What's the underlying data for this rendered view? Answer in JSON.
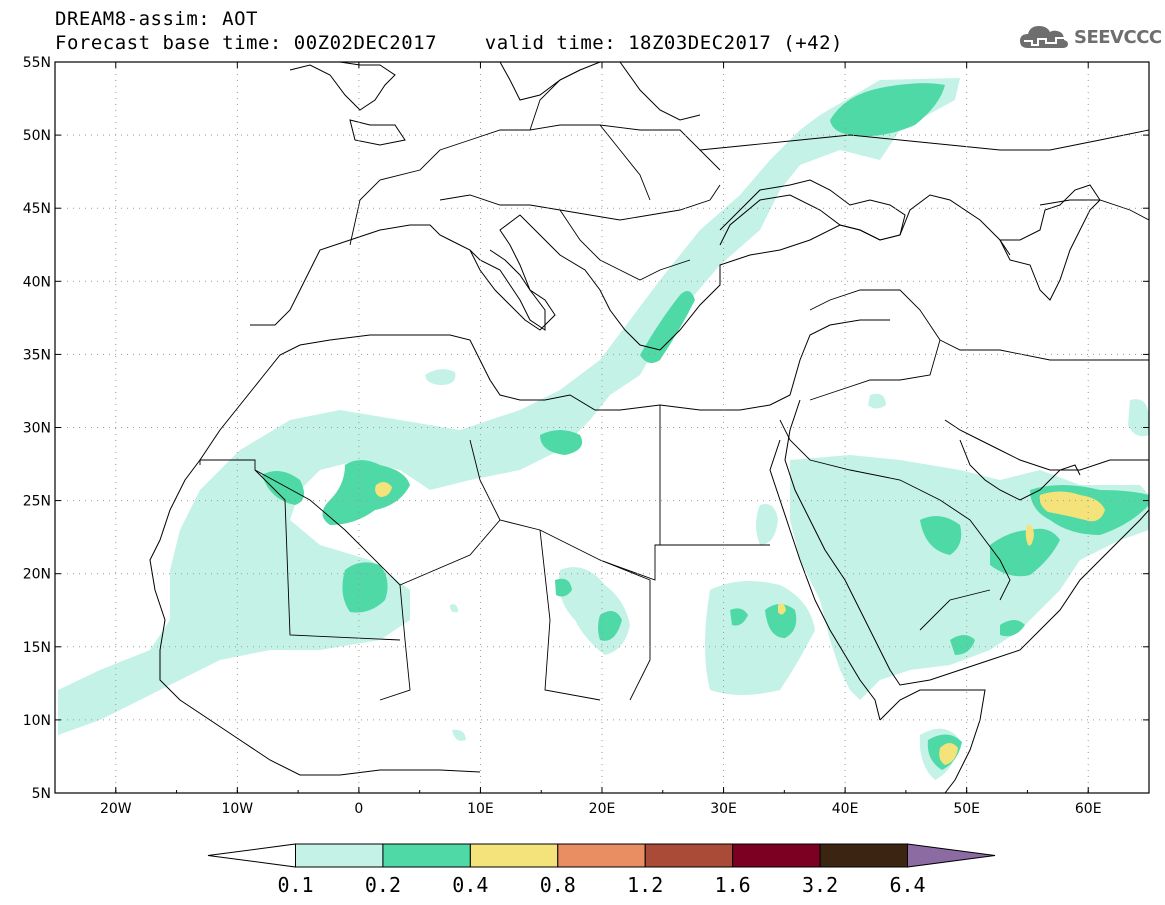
{
  "title_line1": "DREAM8-assim: AOT",
  "title_line2": "Forecast base time: 00Z02DEC2017    valid time: 18Z03DEC2017 (+42)",
  "logo_text": "SEEVCCC",
  "map": {
    "lon_range": [
      -25,
      65
    ],
    "lat_range": [
      5,
      55
    ],
    "lon_ticks": [
      {
        "value": -20,
        "label": "20W"
      },
      {
        "value": -10,
        "label": "10W"
      },
      {
        "value": 0,
        "label": "0"
      },
      {
        "value": 10,
        "label": "10E"
      },
      {
        "value": 20,
        "label": "20E"
      },
      {
        "value": 30,
        "label": "30E"
      },
      {
        "value": 40,
        "label": "40E"
      },
      {
        "value": 50,
        "label": "50E"
      },
      {
        "value": 60,
        "label": "60E"
      }
    ],
    "lat_ticks": [
      {
        "value": 55,
        "label": "55N"
      },
      {
        "value": 50,
        "label": "50N"
      },
      {
        "value": 45,
        "label": "45N"
      },
      {
        "value": 40,
        "label": "40N"
      },
      {
        "value": 35,
        "label": "35N"
      },
      {
        "value": 30,
        "label": "30N"
      },
      {
        "value": 25,
        "label": "25N"
      },
      {
        "value": 20,
        "label": "20N"
      },
      {
        "value": 15,
        "label": "15N"
      },
      {
        "value": 10,
        "label": "10N"
      },
      {
        "value": 5,
        "label": "5N"
      }
    ],
    "grid": true
  },
  "colorbar": {
    "levels": [
      "0.1",
      "0.2",
      "0.4",
      "0.8",
      "1.2",
      "1.6",
      "3.2",
      "6.4"
    ],
    "colors": [
      "#ffffff",
      "#c4f2e6",
      "#4fd9a7",
      "#f4e37a",
      "#e98d62",
      "#aa4b38",
      "#7c0022",
      "#3c2412",
      "#8c6ba3"
    ]
  },
  "colors": {
    "aot_0_1": "#c4f2e6",
    "aot_0_2": "#4fd9a7",
    "aot_0_4": "#f4e37a"
  }
}
